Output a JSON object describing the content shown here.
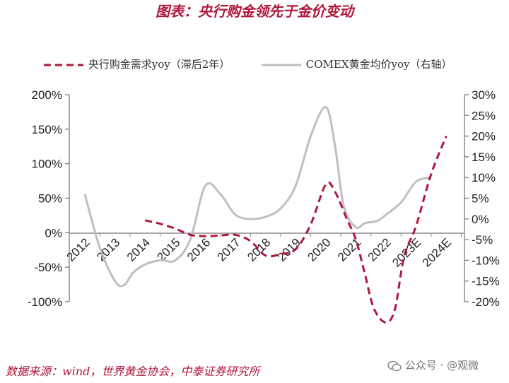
{
  "page": {
    "title": "图表：央行购金领先于金价变动",
    "source": "数据来源：wind，世界黄金协会，中泰证券研究所",
    "watermark": "公众号 · @观微"
  },
  "chart_data": {
    "type": "line",
    "title": "图表：央行购金领先于金价变动",
    "categories": [
      "2012",
      "2013",
      "2014",
      "2015",
      "2016",
      "2017",
      "2018",
      "2019",
      "2020",
      "2021",
      "2022",
      "2023E",
      "2024E"
    ],
    "left_axis": {
      "ylim": [
        -100,
        200
      ],
      "ticks": [
        200,
        150,
        100,
        50,
        0,
        -50,
        -100
      ],
      "tick_labels": [
        "200%",
        "150%",
        "100%",
        "50%",
        "0%",
        "-50%",
        "-100%"
      ]
    },
    "right_axis": {
      "ylim": [
        -20,
        30
      ],
      "ticks": [
        30,
        25,
        20,
        15,
        10,
        5,
        0,
        -5,
        -10,
        -15,
        -20
      ],
      "tick_labels": [
        "30%",
        "25%",
        "20%",
        "15%",
        "10%",
        "5%",
        "0%",
        "-5%",
        "-10%",
        "-15%",
        "-20%"
      ]
    },
    "series": [
      {
        "name": "央行购金需求yoy（滞后2年）",
        "axis": "left",
        "style": "dashed",
        "color": "#b0173a",
        "x": [
          2014,
          2014.5,
          2015,
          2015.5,
          2016,
          2016.5,
          2017,
          2017.5,
          2018,
          2018.5,
          2019,
          2019.5,
          2020,
          2020.3,
          2020.7,
          2021,
          2021.3,
          2021.6,
          2022,
          2022.3,
          2022.6,
          2023,
          2023.5,
          2024
        ],
        "values": [
          18,
          13,
          6,
          -3,
          -5,
          -4,
          -3,
          -12,
          -33,
          -31,
          -24,
          12,
          70,
          60,
          20,
          -10,
          -60,
          -110,
          -130,
          -110,
          -35,
          10,
          85,
          140
        ]
      },
      {
        "name": "COMEX黄金均价yoy（右轴）",
        "axis": "right",
        "style": "solid",
        "color": "#bfbfbf",
        "x": [
          2012,
          2012.5,
          2013,
          2013.3,
          2013.6,
          2014,
          2014.5,
          2015,
          2015.5,
          2016,
          2016.5,
          2017,
          2017.5,
          2018,
          2018.5,
          2019,
          2019.5,
          2020,
          2020.3,
          2020.6,
          2021,
          2021.3,
          2021.7,
          2022,
          2022.5,
          2023,
          2023.5
        ],
        "values": [
          6,
          -7,
          -15,
          -16,
          -13,
          -11,
          -10,
          -10,
          -5,
          8,
          6,
          1,
          0,
          0.5,
          2.5,
          8,
          20,
          27,
          18,
          3,
          -2,
          -1,
          -0.5,
          1,
          4,
          9,
          10
        ]
      }
    ],
    "grid": false,
    "legend": "top"
  }
}
